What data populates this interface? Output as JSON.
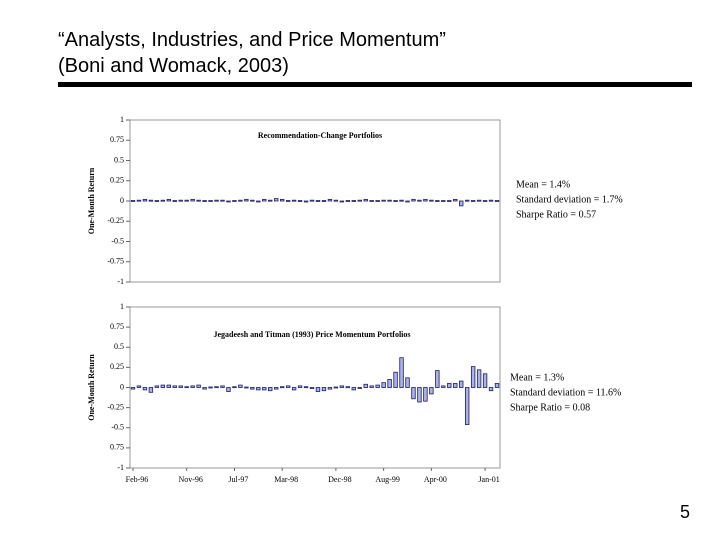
{
  "header": {
    "title_lines": [
      "“Analysts, Industries, and Price Momentum”",
      "(Boni and Womack, 2003)"
    ]
  },
  "page_number": "5",
  "chart_data": [
    {
      "type": "bar",
      "title": "Recommendation-Change Portfolios",
      "ylabel": "One-Month Return",
      "color": "#a9b3e6",
      "edge_color": "#1c1c6b",
      "annotations": [
        "Mean = 1.4%",
        "Standard deviation = 1.7%",
        "Sharpe Ratio = 0.57"
      ],
      "ylim": [
        -1,
        1
      ],
      "yticks": [
        1,
        0.75,
        0.5,
        0.25,
        0,
        -0.25,
        -0.5,
        -0.75,
        -1
      ],
      "values": [
        0,
        0.01,
        0.02,
        0.01,
        0,
        0.01,
        0.02,
        0,
        0.01,
        0.01,
        0.02,
        0.01,
        0,
        0,
        0.01,
        0.01,
        -0.01,
        0,
        0.01,
        0.02,
        0.01,
        -0.01,
        0.02,
        0.01,
        0.03,
        0.02,
        0,
        0.01,
        0,
        -0.01,
        0.01,
        0,
        0,
        0.02,
        0.01,
        -0.01,
        0,
        0,
        0.01,
        0.02,
        0,
        0,
        0.01,
        0.01,
        0,
        0.01,
        -0.01,
        0.02,
        0.01,
        0.02,
        0.01,
        0,
        0,
        0,
        0.02,
        -0.06,
        0.01,
        0,
        0.01,
        0,
        0.01,
        0
      ]
    },
    {
      "type": "bar",
      "title": "Jegadeesh and Titman (1993)  Price Momentum Portfolios",
      "ylabel": "One-Month Return",
      "color": "#a9b3e6",
      "edge_color": "#1c1c6b",
      "annotations": [
        "Mean = 1.3%",
        "Standard deviation = 11.6%",
        "Sharpe Ratio = 0.08"
      ],
      "ylim": [
        -1,
        1
      ],
      "yticks": [
        1,
        0.75,
        0.5,
        0.25,
        0,
        -0.25,
        -0.5,
        {
          "value": -0.75,
          "label": "0.75"
        },
        -1
      ],
      "categories": [
        "Feb-96",
        null,
        null,
        null,
        null,
        null,
        null,
        null,
        null,
        "Nov-96",
        null,
        null,
        null,
        null,
        null,
        null,
        null,
        "Jul-97",
        null,
        null,
        null,
        null,
        null,
        null,
        null,
        "Mar-98",
        null,
        null,
        null,
        null,
        null,
        null,
        null,
        null,
        "Dec-98",
        null,
        null,
        null,
        null,
        null,
        null,
        null,
        "Aug-99",
        null,
        null,
        null,
        null,
        null,
        null,
        null,
        "Apr-00",
        null,
        null,
        null,
        null,
        null,
        null,
        null,
        null,
        "Jan-01",
        null,
        null
      ],
      "values": [
        -0.02,
        0.02,
        -0.03,
        -0.06,
        0.02,
        0.03,
        0.03,
        0.02,
        0.02,
        0.01,
        0.02,
        0.03,
        -0.02,
        0,
        0.01,
        0.02,
        -0.05,
        0.01,
        0.03,
        0,
        -0.02,
        -0.03,
        -0.03,
        -0.04,
        -0.02,
        0.01,
        0.02,
        -0.03,
        0.02,
        0.01,
        -0.01,
        -0.05,
        -0.04,
        -0.02,
        0,
        0.02,
        0.01,
        -0.03,
        -0.01,
        0.04,
        0.02,
        0.03,
        0.06,
        0.1,
        0.19,
        0.37,
        0.12,
        -0.14,
        -0.18,
        -0.17,
        -0.08,
        0.21,
        0.02,
        0.05,
        0.05,
        0.08,
        -0.46,
        0.26,
        0.22,
        0.17,
        -0.04,
        0.05
      ]
    }
  ]
}
